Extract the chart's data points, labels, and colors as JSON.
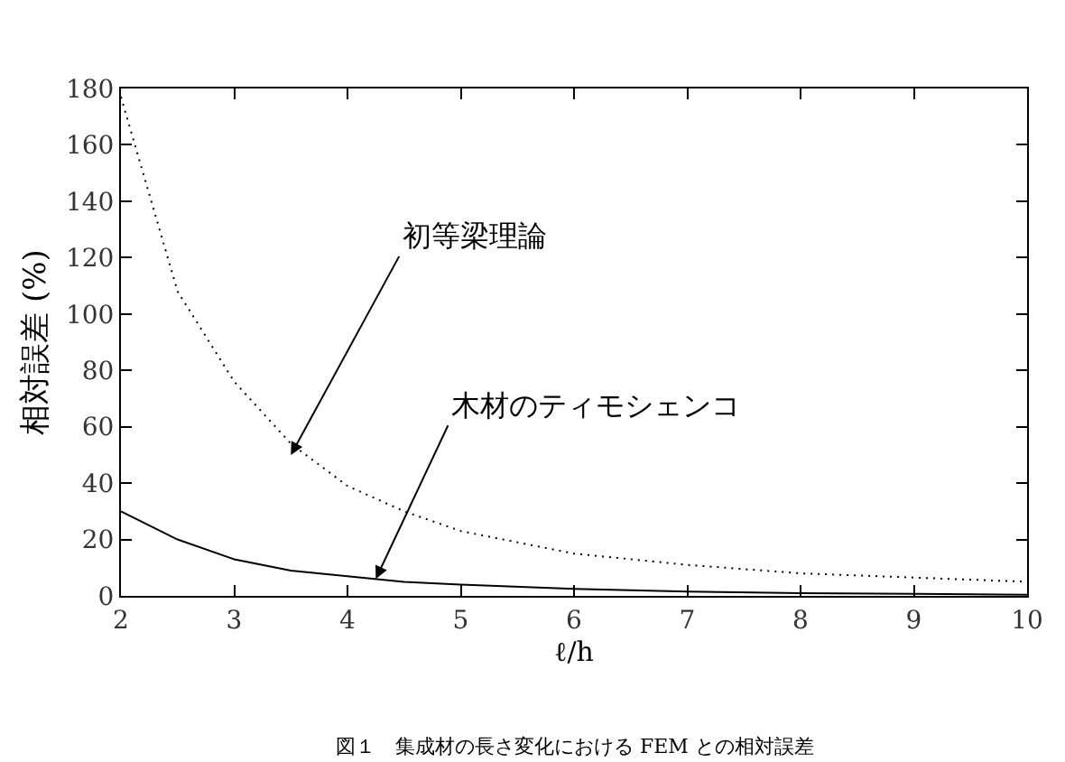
{
  "chart_data": {
    "type": "line",
    "xlabel": "ℓ/h",
    "ylabel": "相対誤差 (%)",
    "x": [
      2,
      2.5,
      3,
      3.5,
      4,
      4.5,
      5,
      6,
      7,
      8,
      9,
      10
    ],
    "series": [
      {
        "color": "#000000",
        "line_style": "dotted",
        "values": [
          177,
          108,
          76,
          54,
          39,
          30,
          23,
          15,
          11,
          8,
          6.5,
          5
        ]
      },
      {
        "color": "#000000",
        "line_style": "solid",
        "values": [
          30,
          20,
          13,
          9,
          7,
          5,
          4,
          2.5,
          1.5,
          1,
          0.7,
          0.4
        ]
      }
    ],
    "xlim": [
      2,
      10
    ],
    "xticks": [
      2,
      3,
      4,
      5,
      6,
      7,
      8,
      9,
      10
    ],
    "ylim": [
      0,
      180
    ],
    "yticks": [
      0,
      20,
      40,
      60,
      80,
      100,
      120,
      140,
      160,
      180
    ],
    "annotations": [
      {
        "text": "初等梁理論",
        "x": 3.5,
        "y": 50
      },
      {
        "text": "木材のティモシェンコ",
        "x": 4.25,
        "y": 6
      },
      "図１　集成材の長さ変化における FEM との相対誤差"
    ]
  }
}
